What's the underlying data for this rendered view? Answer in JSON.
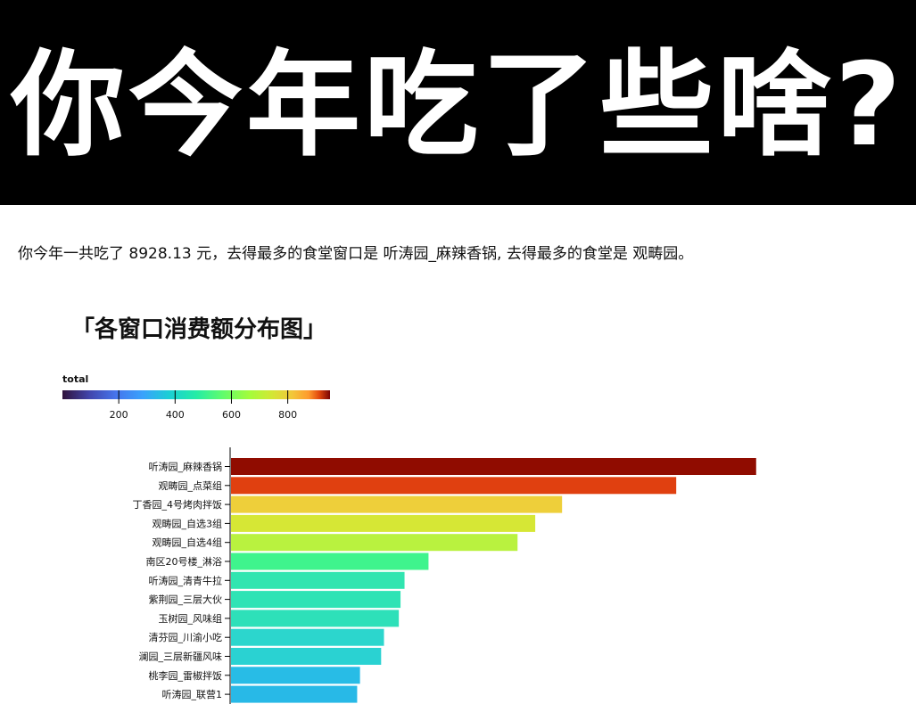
{
  "page": {
    "headline": "你今年吃了些啥?",
    "summary": "你今年一共吃了 8928.13 元，去得最多的食堂窗口是 听涛园_麻辣香锅, 去得最多的食堂是 观畴园。",
    "chart_heading": "「各窗口消费额分布图」"
  },
  "chart_data": {
    "type": "bar",
    "orientation": "horizontal",
    "title": "「各窗口消费额分布图」",
    "xlabel": "",
    "ylabel": "",
    "color_legend": {
      "title": "total",
      "ticks": [
        200,
        400,
        600,
        800
      ],
      "domain": [
        0,
        950
      ],
      "scheme": "turbo"
    },
    "categories": [
      "听涛园_麻辣香锅",
      "观畴园_点菜组",
      "丁香园_4号烤肉拌饭",
      "观畴园_自选3组",
      "观畴园_自选4组",
      "南区20号楼_淋浴",
      "听涛园_清青牛拉",
      "紫荆园_三层大伙",
      "玉树园_风味组",
      "清芬园_川渝小吃",
      "澜园_三层新疆风味",
      "桃李园_雷椒拌饭",
      "听涛园_联营1"
    ],
    "values": [
      920,
      780,
      580,
      533,
      502,
      346,
      304,
      297,
      294,
      268,
      263,
      226,
      221
    ],
    "colors": [
      "#900c00",
      "#e04010",
      "#eecf3a",
      "#d6e735",
      "#b9f23f",
      "#3ff48d",
      "#31e5b0",
      "#2fe3b5",
      "#2ee0b9",
      "#2cd6cd",
      "#2ad2d2",
      "#28bce6",
      "#28b9e7"
    ]
  }
}
